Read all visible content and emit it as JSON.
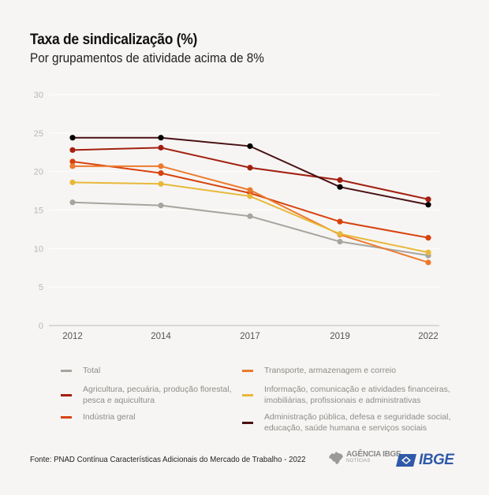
{
  "header": {
    "title": "Taxa de sindicalização (%)",
    "subtitle": "Por grupamentos de atividade acima de 8%"
  },
  "chart_data": {
    "type": "line",
    "title": "Taxa de sindicalização (%)",
    "subtitle": "Por grupamentos de atividade acima de 8%",
    "xlabel": "",
    "ylabel": "",
    "x": [
      "2012",
      "2014",
      "2017",
      "2019",
      "2022"
    ],
    "ylim": [
      0,
      30
    ],
    "yticks": [
      0,
      5,
      10,
      15,
      20,
      25,
      30
    ],
    "grid": true,
    "legend_position": "bottom",
    "series": [
      {
        "name": "Total",
        "color": "#a8a49e",
        "values": [
          16.0,
          15.6,
          14.2,
          10.9,
          9.1
        ]
      },
      {
        "name": "Agricultura, pecuária, produção florestal,\npesca e aquicultura",
        "color": "#a31f10",
        "values": [
          22.8,
          23.1,
          20.5,
          18.9,
          16.4
        ]
      },
      {
        "name": "Indústria geral",
        "color": "#d8420f",
        "values": [
          21.3,
          19.8,
          17.2,
          13.5,
          11.4
        ]
      },
      {
        "name": "Transporte, armazenagem e correio",
        "color": "#ec7a2e",
        "values": [
          20.7,
          20.7,
          17.6,
          11.8,
          8.2
        ]
      },
      {
        "name": "Informação, comunicação e atividades financeiras,\nimobiliárias, profissionais e administrativas",
        "color": "#e8b83a",
        "values": [
          18.6,
          18.4,
          16.8,
          11.9,
          9.5
        ]
      },
      {
        "name": "Administração pública, defesa e seguridade social,\neducação, saúde humana e serviços sociais",
        "color": "#4a1114",
        "values": [
          24.4,
          24.4,
          23.3,
          18.0,
          15.7
        ]
      }
    ]
  },
  "footer": {
    "source": "Fonte: PNAD Contínua Características Adicionais do Mercado de Trabalho - 2022",
    "agencia_main": "AGÊNCIA IBGE",
    "agencia_sub": "NOTÍCIAS",
    "ibge_logo": "IBGE"
  },
  "icons": {
    "agencia": "brazil-map-icon",
    "ibge": "ibge-logo-icon"
  }
}
